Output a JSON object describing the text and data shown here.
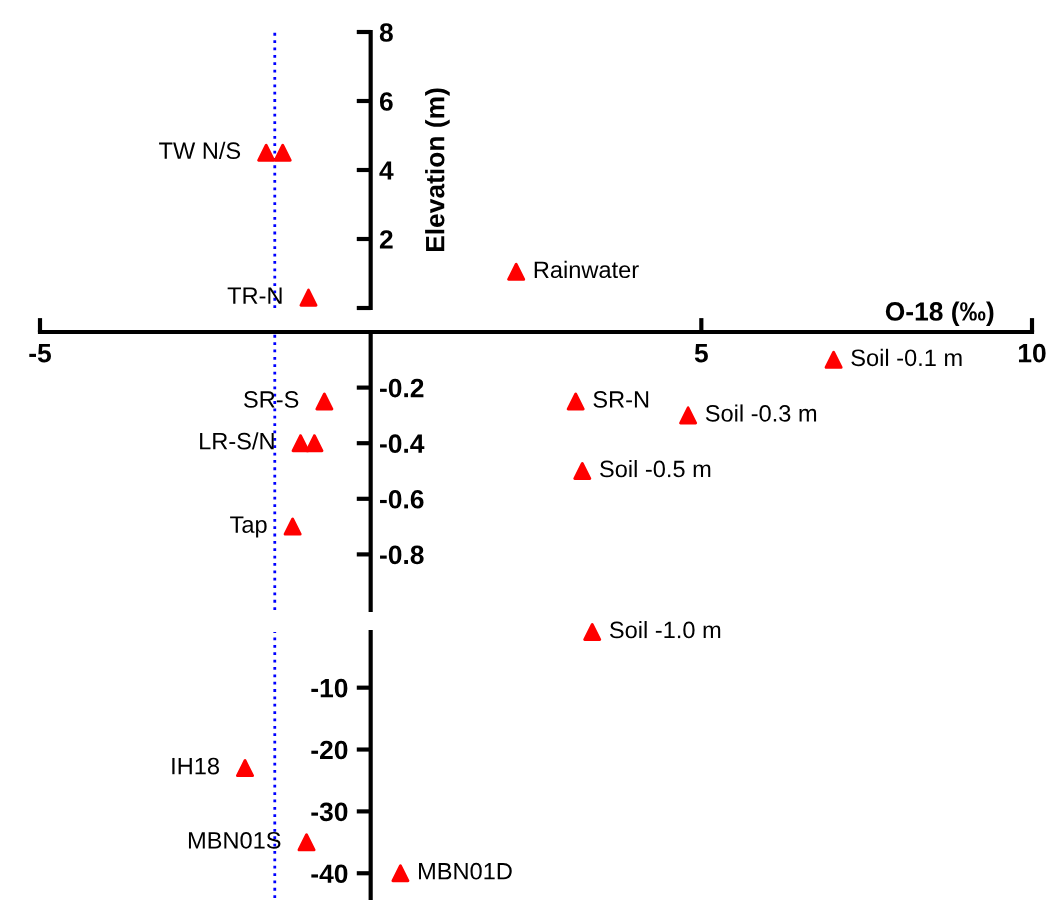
{
  "chart_data": [
    {
      "type": "scatter",
      "ylabel": "Elevation (m)",
      "xlim": [
        -5,
        10
      ],
      "ylim": [
        0,
        8
      ],
      "yticks": [
        {
          "value": 0,
          "label": null
        },
        2,
        4,
        6,
        8
      ],
      "tick_labels": "y",
      "marker": "triangle",
      "series": [
        {
          "color": "#ff0000",
          "x": [
            -1.58,
            -1.33,
            -0.94,
            2.2
          ],
          "values": [
            4.5,
            4.5,
            0.3,
            1.05
          ]
        }
      ],
      "ref_lines": [
        {
          "axis": "x",
          "value": -1.45,
          "color": "#0000ff",
          "line_style": "dotted"
        }
      ],
      "annotations": [
        {
          "text": "TW N/S",
          "x": -1.58,
          "y": 4.5
        },
        {
          "text": "TR-N",
          "x": -0.94,
          "y": 0.3
        },
        {
          "text": "Rainwater",
          "x": 2.2,
          "y": 1.05
        }
      ]
    },
    {
      "type": "scatter",
      "xlabel": "O-18 (‰)",
      "xlim": [
        -5,
        10
      ],
      "xticks": [
        -5,
        5,
        10
      ],
      "ylim": [
        -1,
        0
      ],
      "yticks": [
        -0.2,
        -0.4,
        -0.6,
        -0.8
      ],
      "marker": "triangle",
      "series": [
        {
          "color": "#ff0000",
          "x": [
            -0.7,
            -1.06,
            -0.85,
            -1.18,
            3.1,
            7.0,
            4.8,
            3.2
          ],
          "values": [
            -0.25,
            -0.4,
            -0.4,
            -0.7,
            -0.25,
            -0.1,
            -0.3,
            -0.5
          ]
        }
      ],
      "ref_lines": [
        {
          "axis": "x",
          "value": -1.45,
          "color": "#0000ff",
          "line_style": "dotted"
        }
      ],
      "annotations": [
        {
          "text": "SR-S",
          "x": -0.7,
          "y": -0.25
        },
        {
          "text": "LR-S/N",
          "x": -1.06,
          "y": -0.4
        },
        {
          "text": "Tap",
          "x": -1.18,
          "y": -0.7
        },
        {
          "text": "SR-N",
          "x": 3.1,
          "y": -0.25
        },
        {
          "text": "Soil -0.1 m",
          "x": 7.0,
          "y": -0.1
        },
        {
          "text": "Soil -0.3 m",
          "x": 4.8,
          "y": -0.3
        },
        {
          "text": "Soil -0.5 m",
          "x": 3.2,
          "y": -0.5
        }
      ]
    },
    {
      "type": "scatter",
      "xlim": [
        -5,
        10
      ],
      "ylim": [
        -44,
        -1
      ],
      "yticks": [
        -10,
        -20,
        -30,
        -40
      ],
      "tick_labels": "y",
      "marker": "triangle",
      "series": [
        {
          "color": "#ff0000",
          "x": [
            3.35,
            -1.9,
            -0.97,
            0.45
          ],
          "values": [
            -1.0,
            -23,
            -35,
            -40
          ]
        }
      ],
      "ref_lines": [
        {
          "axis": "x",
          "value": -1.45,
          "color": "#0000ff",
          "line_style": "dotted"
        }
      ],
      "annotations": [
        {
          "text": "Soil -1.0 m",
          "x": 3.35,
          "y": -1.0
        },
        {
          "text": "IH18",
          "x": -1.9,
          "y": -23
        },
        {
          "text": "MBN01S",
          "x": -0.97,
          "y": -35
        },
        {
          "text": "MBN01D",
          "x": 0.45,
          "y": -40
        }
      ]
    }
  ]
}
